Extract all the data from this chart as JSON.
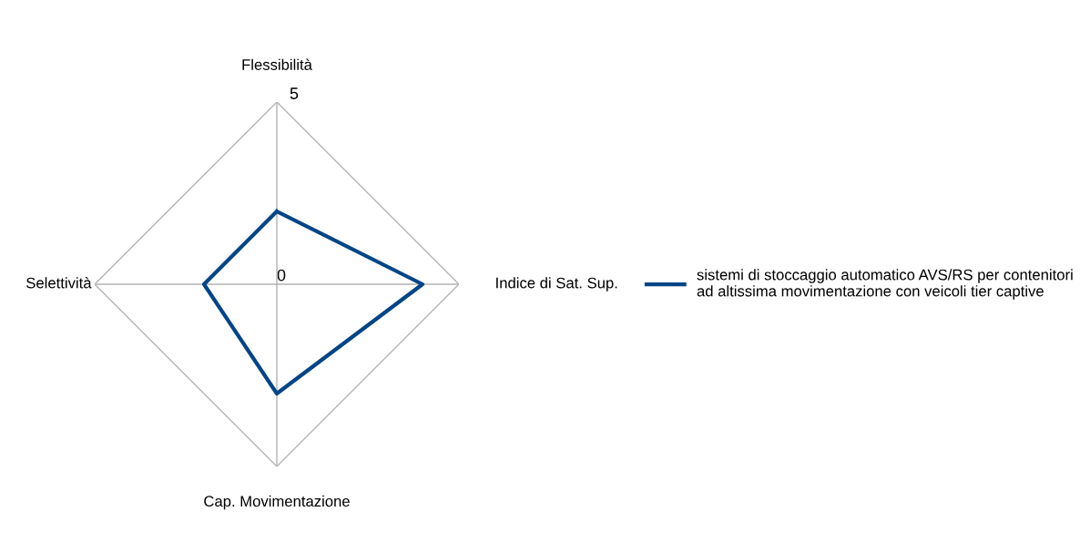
{
  "chart_data": {
    "type": "radar",
    "categories": [
      "Flessibilità",
      "Indice di Sat. Sup.",
      "Cap. Movimentazione",
      "Selettività"
    ],
    "series": [
      {
        "name": "sistemi di stoccaggio automatico AVS/RS per contenitori\nad altissima movimentazione con veicoli tier captive",
        "color": "#004586",
        "values": [
          2,
          4,
          3,
          2
        ]
      }
    ],
    "ylim": [
      0,
      5
    ],
    "yticks": [
      0,
      5
    ],
    "grid": true,
    "legend": "right"
  }
}
